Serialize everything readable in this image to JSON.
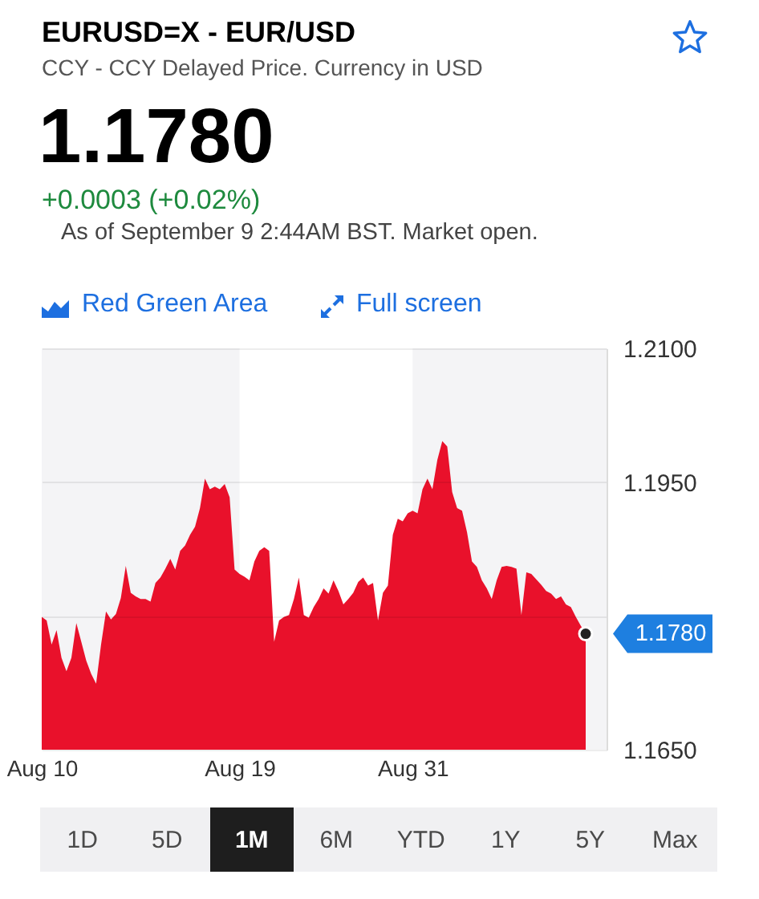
{
  "chart_data": {
    "type": "area",
    "title": "EURUSD=X - EUR/USD",
    "subtitle": "CCY - CCY Delayed Price. Currency in USD",
    "categories": [
      "Aug 10",
      null,
      null,
      null,
      null,
      null,
      null,
      null,
      null,
      null,
      null,
      null,
      null,
      null,
      null,
      null,
      null,
      null,
      null,
      null,
      null,
      null,
      null,
      null,
      null,
      null,
      null,
      null,
      null,
      null,
      null,
      null,
      null,
      null,
      null,
      null,
      null,
      null,
      null,
      null,
      "Aug 19",
      null,
      null,
      null,
      null,
      null,
      null,
      null,
      null,
      null,
      null,
      null,
      null,
      null,
      null,
      null,
      null,
      null,
      null,
      null,
      null,
      null,
      null,
      null,
      null,
      null,
      null,
      null,
      null,
      null,
      null,
      null,
      null,
      null,
      null,
      "Aug 31",
      null,
      null,
      null,
      null,
      null,
      null,
      null,
      null,
      null,
      null,
      null,
      null,
      null,
      null,
      null,
      null,
      null,
      null,
      null,
      null,
      null,
      null,
      null,
      null,
      null,
      null,
      null,
      null,
      null,
      null,
      null,
      null,
      null,
      null,
      null
    ],
    "values": [
      1.1799,
      1.1795,
      1.1768,
      1.1784,
      1.1753,
      1.1738,
      1.1753,
      1.1792,
      1.1771,
      1.175,
      1.1735,
      1.1724,
      1.1768,
      1.1805,
      1.1796,
      1.1802,
      1.182,
      1.1856,
      1.1826,
      1.1822,
      1.1819,
      1.1819,
      1.1816,
      1.1837,
      1.1843,
      1.1853,
      1.1864,
      1.1852,
      1.1873,
      1.1879,
      1.1891,
      1.19,
      1.1921,
      1.1954,
      1.1942,
      1.1945,
      1.1942,
      1.1948,
      1.1933,
      1.1852,
      1.1847,
      1.1844,
      1.184,
      1.1861,
      1.1873,
      1.1877,
      1.1873,
      1.1771,
      1.1795,
      1.1799,
      1.1801,
      1.1819,
      1.1843,
      1.1801,
      1.1798,
      1.181,
      1.1819,
      1.1831,
      1.1825,
      1.184,
      1.1828,
      1.1813,
      1.1819,
      1.1826,
      1.1838,
      1.1843,
      1.1834,
      1.1837,
      1.1795,
      1.1826,
      1.1834,
      1.1891,
      1.1909,
      1.1906,
      1.1915,
      1.1918,
      1.1915,
      1.1942,
      1.1954,
      1.1942,
      1.1975,
      1.1996,
      1.199,
      1.1939,
      1.1921,
      1.1918,
      1.1894,
      1.1861,
      1.1855,
      1.184,
      1.1831,
      1.1819,
      1.184,
      1.1855,
      1.1856,
      1.1855,
      1.1853,
      1.1801,
      1.1849,
      1.1847,
      1.1841,
      1.1835,
      1.1828,
      1.1825,
      1.1819,
      1.1822,
      1.1813,
      1.181,
      1.1799,
      1.1789,
      1.178
    ],
    "color": "#e9112b",
    "ylim": [
      1.165,
      1.21
    ],
    "yticks": [
      {
        "value": 1.165,
        "label": "1.1650"
      },
      {
        "value": 1.18,
        "label": null
      },
      {
        "value": 1.195,
        "label": "1.1950"
      },
      {
        "value": 1.21,
        "label": "1.2100"
      }
    ],
    "grid": "y",
    "bands": [
      {
        "axis": "x",
        "from": "Aug 19",
        "to": "Aug 31",
        "color": "#ffffff"
      }
    ],
    "annotations": [
      "1.1780",
      "+0.0003 (+0.02%)",
      "As of September 9 2:44AM BST. Market open.",
      "Red Green Area",
      "Full screen",
      "1D",
      "5D",
      "1M",
      "6M",
      "YTD",
      "1Y",
      "5Y",
      "Max",
      "1.1780"
    ]
  }
}
